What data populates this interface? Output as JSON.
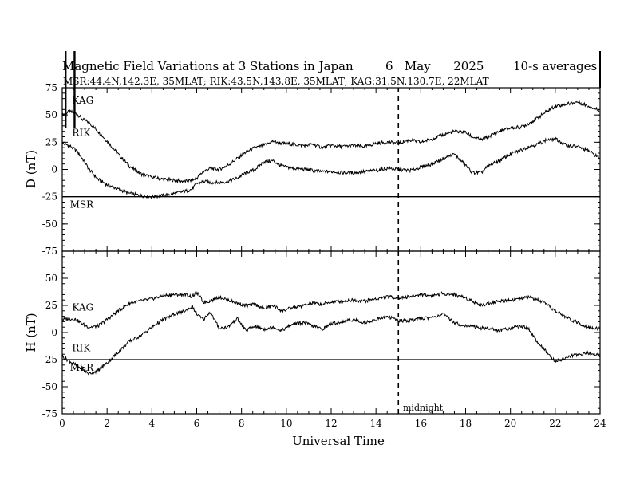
{
  "chart_data": [
    {
      "type": "line",
      "panel": "D",
      "title": "Magnetic Field Variations at 3 Stations in Japan",
      "date_text": "6   May      2025",
      "average_text": "10-s averages",
      "subtitle": "MSR:44.4N,142.3E, 35MLAT;  RIK:43.5N,143.8E, 35MLAT;  KAG:31.5N,130.7E, 22MLAT",
      "ylabel": "D (nT)",
      "xlabel": "",
      "xlim": [
        0,
        24
      ],
      "ylim": [
        -75,
        75
      ],
      "yticks": [
        "75",
        "50",
        "25",
        "0",
        "-25",
        "-50",
        "-75"
      ],
      "series": [
        {
          "name": "KAG",
          "x": [
            0,
            0.3,
            0.6,
            0.9,
            1.2,
            1.6,
            2.0,
            2.5,
            3.0,
            3.5,
            4.0,
            4.5,
            5.0,
            5.5,
            5.8,
            6.0,
            6.3,
            6.6,
            7.0,
            7.4,
            7.8,
            8.2,
            8.6,
            9.0,
            9.4,
            9.8,
            10.3,
            10.8,
            11.2,
            11.6,
            12.0,
            12.5,
            13.0,
            13.5,
            14.0,
            14.5,
            15.0,
            15.5,
            16.0,
            16.5,
            17.0,
            17.5,
            18.0,
            18.3,
            18.7,
            19.0,
            19.5,
            20.0,
            20.5,
            20.8,
            21.2,
            21.6,
            22.0,
            22.5,
            23.0,
            23.5,
            24.0
          ],
          "values": [
            50,
            53,
            52,
            46,
            43,
            35,
            26,
            14,
            3,
            -4,
            -7,
            -9,
            -10,
            -11,
            -10,
            -8,
            -2,
            1,
            0,
            4,
            10,
            16,
            20,
            22,
            26,
            24,
            23,
            22,
            23,
            20,
            22,
            21,
            22,
            21,
            24,
            25,
            24,
            27,
            25,
            28,
            32,
            35,
            34,
            30,
            27,
            30,
            35,
            38,
            39,
            42,
            47,
            53,
            58,
            60,
            62,
            58,
            54
          ]
        },
        {
          "name": "RIK",
          "x": [
            0,
            0.3,
            0.6,
            0.9,
            1.2,
            1.6,
            2.0,
            2.5,
            3.0,
            3.5,
            4.0,
            4.5,
            5.0,
            5.5,
            5.8,
            6.0,
            6.3,
            6.6,
            7.0,
            7.4,
            7.8,
            8.2,
            8.6,
            9.0,
            9.4,
            9.8,
            10.3,
            10.8,
            11.2,
            11.6,
            12.0,
            12.5,
            13.0,
            13.5,
            14.0,
            14.5,
            15.0,
            15.5,
            16.0,
            16.5,
            17.0,
            17.5,
            18.0,
            18.3,
            18.7,
            19.0,
            19.5,
            20.0,
            20.5,
            20.8,
            21.2,
            21.6,
            22.0,
            22.5,
            23.0,
            23.5,
            24.0
          ],
          "values": [
            24,
            22,
            18,
            10,
            0,
            -9,
            -14,
            -18,
            -22,
            -24,
            -25,
            -24,
            -22,
            -20,
            -18,
            -13,
            -11,
            -12,
            -12,
            -11,
            -8,
            -3,
            0,
            7,
            8,
            3,
            1,
            0,
            -1,
            -2,
            -2,
            -3,
            -3,
            -2,
            -1,
            1,
            0,
            -1,
            2,
            5,
            10,
            14,
            4,
            -3,
            -3,
            3,
            8,
            14,
            18,
            21,
            23,
            27,
            28,
            22,
            21,
            17,
            10
          ]
        },
        {
          "name": "MSR",
          "x": [
            0,
            24
          ],
          "values": [
            -25,
            -25
          ]
        }
      ]
    },
    {
      "type": "line",
      "panel": "H",
      "ylabel": "H (nT)",
      "xlabel": "Universal Time",
      "xlim": [
        0,
        24
      ],
      "ylim": [
        -75,
        75
      ],
      "xticks": [
        "0",
        "2",
        "4",
        "6",
        "8",
        "10",
        "12",
        "14",
        "16",
        "18",
        "20",
        "22",
        "24"
      ],
      "yticks": [
        "75",
        "50",
        "25",
        "0",
        "-25",
        "-50",
        "-75"
      ],
      "annotation": "midnight",
      "midnight_x": 15,
      "series": [
        {
          "name": "KAG",
          "x": [
            0,
            0.3,
            0.6,
            0.9,
            1.2,
            1.6,
            2.0,
            2.5,
            3.0,
            3.5,
            4.0,
            4.5,
            5.0,
            5.5,
            5.8,
            6.0,
            6.3,
            6.6,
            7.0,
            7.4,
            7.8,
            8.2,
            8.6,
            9.0,
            9.4,
            9.8,
            10.3,
            10.8,
            11.2,
            11.6,
            12.0,
            12.5,
            13.0,
            13.5,
            14.0,
            14.5,
            15.0,
            15.5,
            16.0,
            16.5,
            17.0,
            17.5,
            18.0,
            18.3,
            18.7,
            19.0,
            19.5,
            20.0,
            20.5,
            20.8,
            21.2,
            21.6,
            22.0,
            22.5,
            23.0,
            23.5,
            24.0
          ],
          "values": [
            12,
            13,
            12,
            8,
            5,
            6,
            12,
            20,
            27,
            29,
            31,
            34,
            35,
            35,
            33,
            37,
            28,
            29,
            33,
            30,
            27,
            25,
            26,
            22,
            25,
            20,
            23,
            25,
            27,
            26,
            28,
            29,
            30,
            29,
            31,
            33,
            32,
            33,
            35,
            34,
            36,
            35,
            32,
            29,
            25,
            27,
            29,
            30,
            31,
            33,
            30,
            26,
            20,
            14,
            9,
            5,
            3
          ]
        },
        {
          "name": "RIK",
          "x": [
            0,
            0.3,
            0.6,
            0.9,
            1.2,
            1.6,
            2.0,
            2.5,
            3.0,
            3.5,
            4.0,
            4.5,
            5.0,
            5.5,
            5.8,
            6.0,
            6.3,
            6.6,
            7.0,
            7.4,
            7.8,
            8.2,
            8.6,
            9.0,
            9.4,
            9.8,
            10.3,
            10.8,
            11.2,
            11.6,
            12.0,
            12.5,
            13.0,
            13.5,
            14.0,
            14.5,
            15.0,
            15.5,
            16.0,
            16.5,
            17.0,
            17.5,
            18.0,
            18.3,
            18.7,
            19.0,
            19.5,
            20.0,
            20.5,
            20.8,
            21.2,
            21.6,
            22.0,
            22.5,
            23.0,
            23.5,
            24.0
          ],
          "values": [
            -22,
            -26,
            -30,
            -34,
            -38,
            -35,
            -28,
            -18,
            -8,
            -3,
            5,
            12,
            17,
            20,
            24,
            17,
            12,
            19,
            4,
            5,
            13,
            2,
            6,
            3,
            5,
            2,
            8,
            9,
            6,
            3,
            8,
            10,
            12,
            9,
            12,
            15,
            11,
            11,
            13,
            14,
            17,
            9,
            6,
            6,
            4,
            4,
            2,
            4,
            6,
            4,
            -9,
            -18,
            -27,
            -23,
            -20,
            -19,
            -21
          ]
        },
        {
          "name": "MSR",
          "x": [
            0,
            24
          ],
          "values": [
            -25,
            -25
          ]
        }
      ]
    }
  ]
}
